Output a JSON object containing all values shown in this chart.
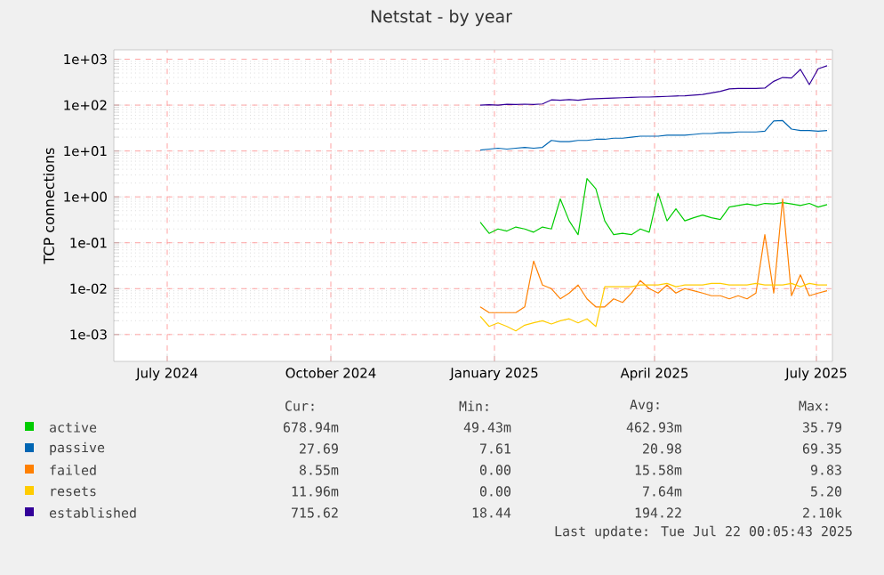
{
  "chart_data": {
    "type": "line",
    "title": "Netstat - by year",
    "ylabel": "TCP connections",
    "log": "y",
    "grid": true,
    "legend": "bottom",
    "marker": "none",
    "line_style": "solid",
    "xlim": [
      "2024-06-16",
      "2025-07-25"
    ],
    "xticks": [
      {
        "value": "2024-07-16",
        "label": "July 2024"
      },
      {
        "value": "2024-10-16",
        "label": "October 2024"
      },
      {
        "value": "2025-01-16",
        "label": "January 2025"
      },
      {
        "value": "2025-04-16",
        "label": "April 2025"
      },
      {
        "value": "2025-07-16",
        "label": "July 2025"
      }
    ],
    "ylim": [
      0.00026,
      1600
    ],
    "yticks": [
      {
        "value": 0.001,
        "label": "1e-03"
      },
      {
        "value": 0.01,
        "label": "1e-02"
      },
      {
        "value": 0.1,
        "label": "1e-01"
      },
      {
        "value": 1,
        "label": "1e+00"
      },
      {
        "value": 10,
        "label": "1e+01"
      },
      {
        "value": 100,
        "label": "1e+02"
      },
      {
        "value": 1000,
        "label": "1e+03"
      }
    ],
    "x": [
      "2025-01-08",
      "2025-01-13",
      "2025-01-18",
      "2025-01-23",
      "2025-01-28",
      "2025-02-02",
      "2025-02-07",
      "2025-02-12",
      "2025-02-17",
      "2025-02-22",
      "2025-02-27",
      "2025-03-04",
      "2025-03-09",
      "2025-03-14",
      "2025-03-19",
      "2025-03-24",
      "2025-03-29",
      "2025-04-03",
      "2025-04-08",
      "2025-04-13",
      "2025-04-18",
      "2025-04-23",
      "2025-04-28",
      "2025-05-03",
      "2025-05-08",
      "2025-05-13",
      "2025-05-18",
      "2025-05-23",
      "2025-05-28",
      "2025-06-02",
      "2025-06-07",
      "2025-06-12",
      "2025-06-17",
      "2025-06-22",
      "2025-06-27",
      "2025-07-02",
      "2025-07-07",
      "2025-07-12",
      "2025-07-17",
      "2025-07-22"
    ],
    "series": [
      {
        "name": "active",
        "color": "#00cc00",
        "values": [
          0.28,
          0.16,
          0.2,
          0.18,
          0.22,
          0.2,
          0.17,
          0.22,
          0.2,
          0.9,
          0.3,
          0.15,
          2.5,
          1.5,
          0.3,
          0.15,
          0.16,
          0.15,
          0.2,
          0.17,
          1.2,
          0.3,
          0.55,
          0.3,
          0.35,
          0.4,
          0.35,
          0.32,
          0.6,
          0.65,
          0.7,
          0.65,
          0.72,
          0.7,
          0.75,
          0.7,
          0.65,
          0.72,
          0.6,
          0.68
        ]
      },
      {
        "name": "passive",
        "color": "#0066b3",
        "values": [
          10.5,
          11,
          11.5,
          11,
          11.5,
          12,
          11.5,
          12,
          17,
          16,
          16,
          17,
          17,
          18,
          18,
          19,
          19,
          20,
          21,
          21,
          21,
          22,
          22,
          22,
          23,
          24,
          24,
          25,
          25,
          26,
          26,
          26,
          27,
          45,
          46,
          30,
          28,
          28,
          27,
          28
        ]
      },
      {
        "name": "failed",
        "color": "#ff8000",
        "values": [
          0.004,
          0.003,
          0.003,
          0.003,
          0.003,
          0.004,
          0.04,
          0.012,
          0.01,
          0.006,
          0.008,
          0.012,
          0.006,
          0.004,
          0.004,
          0.006,
          0.005,
          0.008,
          0.015,
          0.01,
          0.008,
          0.012,
          0.008,
          0.01,
          0.009,
          0.008,
          0.007,
          0.007,
          0.006,
          0.007,
          0.006,
          0.008,
          0.15,
          0.008,
          0.9,
          0.007,
          0.02,
          0.007,
          0.008,
          0.009
        ]
      },
      {
        "name": "resets",
        "color": "#ffcc00",
        "values": [
          0.0025,
          0.0015,
          0.0018,
          0.0015,
          0.0012,
          0.0016,
          0.0018,
          0.002,
          0.0017,
          0.002,
          0.0022,
          0.0018,
          0.0022,
          0.0015,
          0.011,
          0.011,
          0.011,
          0.011,
          0.012,
          0.012,
          0.012,
          0.013,
          0.011,
          0.012,
          0.012,
          0.012,
          0.013,
          0.013,
          0.012,
          0.012,
          0.012,
          0.013,
          0.012,
          0.012,
          0.012,
          0.013,
          0.011,
          0.013,
          0.012,
          0.012
        ]
      },
      {
        "name": "established",
        "color": "#330099",
        "values": [
          100,
          102,
          100,
          104,
          103,
          105,
          103,
          106,
          130,
          128,
          132,
          128,
          135,
          138,
          140,
          142,
          145,
          148,
          150,
          150,
          152,
          155,
          158,
          160,
          165,
          170,
          185,
          200,
          225,
          230,
          232,
          230,
          235,
          330,
          400,
          390,
          600,
          280,
          620,
          720
        ]
      }
    ],
    "annotations": [
      "Cur:",
      "Min:",
      "Avg:",
      "Max:",
      "678.94m",
      "49.43m",
      "462.93m",
      "35.79",
      "27.69",
      "7.61",
      "20.98",
      "69.35",
      "8.55m",
      "0.00",
      "15.58m",
      "9.83",
      "11.96m",
      "0.00",
      "7.64m",
      "5.20",
      "715.62",
      "18.44",
      "194.22",
      "2.10k",
      "Last update: Tue Jul 22 00:05:43 2025"
    ]
  }
}
